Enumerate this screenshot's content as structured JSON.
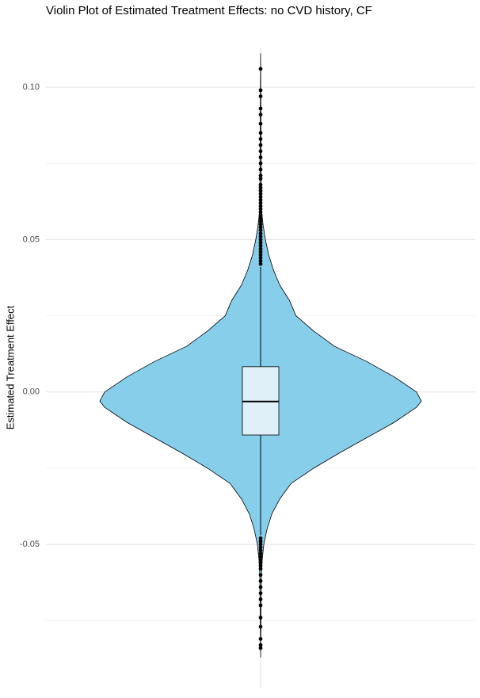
{
  "chart_data": {
    "type": "violin",
    "title": "Violin Plot of Estimated Treatment Effects: no CVD history, CF",
    "y_label": "Estimated Treatment Effect",
    "ylim": [
      -0.097,
      0.113
    ],
    "yticks": [
      {
        "value": -0.05,
        "label": "-0.05"
      },
      {
        "value": 0,
        "label": "0.00"
      },
      {
        "value": 0.05,
        "label": "0.05"
      },
      {
        "value": 0.1,
        "label": "0.10"
      }
    ],
    "minor_yticks": [
      -0.075,
      -0.025,
      0.025,
      0.075
    ],
    "grid": true,
    "violin": {
      "color": "#87CEEB",
      "outline": "#000000",
      "y": [
        0.111,
        0.06,
        0.055,
        0.05,
        0.045,
        0.04,
        0.035,
        0.03,
        0.025,
        0.02,
        0.015,
        0.01,
        0.005,
        0,
        -0.003,
        -0.005,
        -0.01,
        -0.015,
        -0.02,
        -0.025,
        -0.03,
        -0.035,
        -0.04,
        -0.045,
        -0.05,
        -0.055,
        -0.06,
        -0.087
      ],
      "density": [
        0,
        0.005,
        0.015,
        0.03,
        0.05,
        0.08,
        0.12,
        0.18,
        0.22,
        0.33,
        0.46,
        0.66,
        0.83,
        0.97,
        1,
        0.97,
        0.83,
        0.66,
        0.49,
        0.33,
        0.19,
        0.12,
        0.07,
        0.04,
        0.02,
        0.01,
        0.005,
        0
      ]
    },
    "box": {
      "color": "#E0F0F8",
      "q1": -0.0141,
      "median": -0.0031,
      "q3": 0.0083,
      "whisker_low": -0.047,
      "whisker_high": 0.041
    },
    "outliers": {
      "color": "#000000",
      "values": [
        0.106,
        0.099,
        0.097,
        0.093,
        0.091,
        0.088,
        0.085,
        0.083,
        0.081,
        0.079,
        0.077,
        0.075,
        0.073,
        0.071,
        0.07,
        0.068,
        0.067,
        0.066,
        0.065,
        0.064,
        0.063,
        0.062,
        0.061,
        0.06,
        0.059,
        0.058,
        0.057,
        0.056,
        0.055,
        0.054,
        0.053,
        0.052,
        0.051,
        0.05,
        0.049,
        0.048,
        0.047,
        0.046,
        0.045,
        0.044,
        0.043,
        0.042,
        -0.048,
        -0.049,
        -0.05,
        -0.051,
        -0.052,
        -0.053,
        -0.054,
        -0.055,
        -0.056,
        -0.057,
        -0.058,
        -0.06,
        -0.062,
        -0.064,
        -0.066,
        -0.068,
        -0.07,
        -0.074,
        -0.077,
        -0.081,
        -0.083,
        -0.084
      ]
    }
  }
}
